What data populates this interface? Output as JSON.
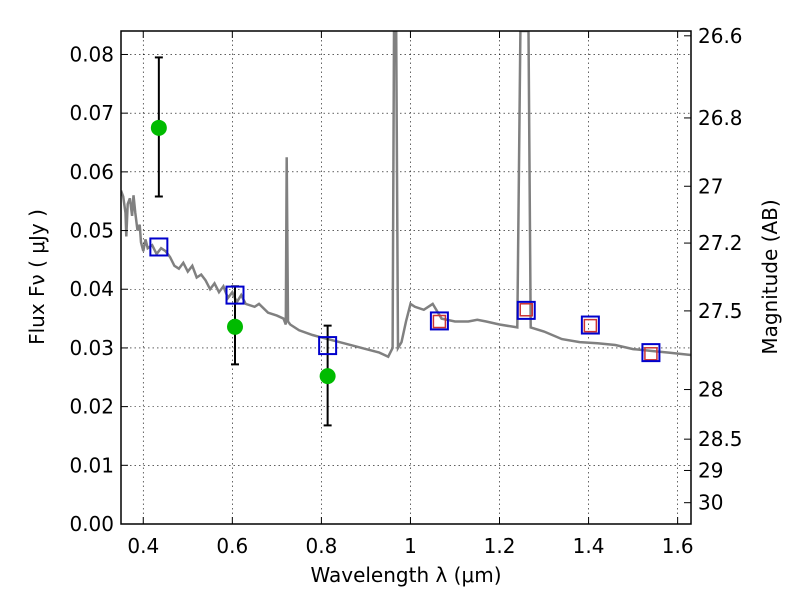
{
  "chart_data": {
    "type": "scatter",
    "xlabel": "Wavelength  λ (μm)",
    "ylabel": "Flux  Fν  ( μJy )",
    "ylabel_right": "Magnitude (AB)",
    "xlim": [
      0.35,
      1.63
    ],
    "ylim": [
      0.0,
      0.084
    ],
    "grid": true,
    "x_ticks": [
      {
        "value": 0.4,
        "label": "0.4"
      },
      {
        "value": 0.6,
        "label": "0.6"
      },
      {
        "value": 0.8,
        "label": "0.8"
      },
      {
        "value": 1.0,
        "label": "1"
      },
      {
        "value": 1.2,
        "label": "1.2"
      },
      {
        "value": 1.4,
        "label": "1.4"
      },
      {
        "value": 1.6,
        "label": "1.6"
      }
    ],
    "y_ticks": [
      {
        "value": 0.0,
        "label": "0.00"
      },
      {
        "value": 0.01,
        "label": "0.01"
      },
      {
        "value": 0.02,
        "label": "0.02"
      },
      {
        "value": 0.03,
        "label": "0.03"
      },
      {
        "value": 0.04,
        "label": "0.04"
      },
      {
        "value": 0.05,
        "label": "0.05"
      },
      {
        "value": 0.06,
        "label": "0.06"
      },
      {
        "value": 0.07,
        "label": "0.07"
      },
      {
        "value": 0.08,
        "label": "0.08"
      }
    ],
    "right_ticks": [
      {
        "value": 26.6,
        "label": "26.6"
      },
      {
        "value": 26.8,
        "label": "26.8"
      },
      {
        "value": 27.0,
        "label": "27"
      },
      {
        "value": 27.2,
        "label": "27.2"
      },
      {
        "value": 27.5,
        "label": "27.5"
      },
      {
        "value": 28.0,
        "label": "28"
      },
      {
        "value": 28.5,
        "label": "28.5"
      },
      {
        "value": 29.0,
        "label": "29"
      },
      {
        "value": 30.0,
        "label": "30"
      }
    ],
    "observed": [
      {
        "x": 0.435,
        "y": 0.0675,
        "yerr_low": 0.0558,
        "yerr_high": 0.0795
      },
      {
        "x": 0.606,
        "y": 0.0336,
        "yerr_low": 0.0272,
        "yerr_high": 0.0405
      },
      {
        "x": 0.814,
        "y": 0.0252,
        "yerr_low": 0.0168,
        "yerr_high": 0.0338
      }
    ],
    "model_points_blue": [
      {
        "x": 0.435,
        "y": 0.0472
      },
      {
        "x": 0.606,
        "y": 0.039
      },
      {
        "x": 0.814,
        "y": 0.0304
      },
      {
        "x": 1.065,
        "y": 0.0346
      },
      {
        "x": 1.26,
        "y": 0.0364
      },
      {
        "x": 1.404,
        "y": 0.0339
      },
      {
        "x": 1.54,
        "y": 0.0292
      }
    ],
    "model_points_red": [
      {
        "x": 1.065,
        "y": 0.0345
      },
      {
        "x": 1.26,
        "y": 0.0365
      },
      {
        "x": 1.404,
        "y": 0.0338
      },
      {
        "x": 1.54,
        "y": 0.029
      }
    ],
    "spectrum": [
      [
        0.35,
        0.0568
      ],
      [
        0.355,
        0.0558
      ],
      [
        0.36,
        0.053
      ],
      [
        0.362,
        0.049
      ],
      [
        0.365,
        0.0545
      ],
      [
        0.37,
        0.0555
      ],
      [
        0.375,
        0.0525
      ],
      [
        0.378,
        0.056
      ],
      [
        0.382,
        0.053
      ],
      [
        0.387,
        0.05
      ],
      [
        0.392,
        0.051
      ],
      [
        0.395,
        0.048
      ],
      [
        0.4,
        0.0465
      ],
      [
        0.405,
        0.0485
      ],
      [
        0.41,
        0.047
      ],
      [
        0.42,
        0.0475
      ],
      [
        0.43,
        0.046
      ],
      [
        0.44,
        0.047
      ],
      [
        0.45,
        0.0465
      ],
      [
        0.46,
        0.0455
      ],
      [
        0.47,
        0.044
      ],
      [
        0.48,
        0.0435
      ],
      [
        0.49,
        0.0445
      ],
      [
        0.5,
        0.043
      ],
      [
        0.51,
        0.044
      ],
      [
        0.52,
        0.042
      ],
      [
        0.53,
        0.0425
      ],
      [
        0.54,
        0.0415
      ],
      [
        0.55,
        0.04
      ],
      [
        0.56,
        0.041
      ],
      [
        0.57,
        0.0395
      ],
      [
        0.58,
        0.0405
      ],
      [
        0.59,
        0.0385
      ],
      [
        0.6,
        0.0395
      ],
      [
        0.61,
        0.0378
      ],
      [
        0.62,
        0.039
      ],
      [
        0.63,
        0.0375
      ],
      [
        0.65,
        0.037
      ],
      [
        0.66,
        0.0375
      ],
      [
        0.68,
        0.036
      ],
      [
        0.7,
        0.0355
      ],
      [
        0.715,
        0.035
      ],
      [
        0.72,
        0.034
      ],
      [
        0.722,
        0.0625
      ],
      [
        0.725,
        0.0345
      ],
      [
        0.73,
        0.034
      ],
      [
        0.75,
        0.033
      ],
      [
        0.78,
        0.0322
      ],
      [
        0.8,
        0.0318
      ],
      [
        0.85,
        0.0308
      ],
      [
        0.9,
        0.0298
      ],
      [
        0.93,
        0.0292
      ],
      [
        0.95,
        0.0285
      ],
      [
        0.96,
        0.03
      ],
      [
        0.963,
        0.084
      ],
      [
        0.968,
        0.084
      ],
      [
        0.972,
        0.03
      ],
      [
        0.98,
        0.031
      ],
      [
        0.99,
        0.0345
      ],
      [
        1.0,
        0.0375
      ],
      [
        1.01,
        0.037
      ],
      [
        1.03,
        0.0365
      ],
      [
        1.05,
        0.0375
      ],
      [
        1.07,
        0.035
      ],
      [
        1.1,
        0.0345
      ],
      [
        1.13,
        0.0345
      ],
      [
        1.15,
        0.0348
      ],
      [
        1.17,
        0.0345
      ],
      [
        1.2,
        0.034
      ],
      [
        1.24,
        0.0335
      ],
      [
        1.247,
        0.084
      ],
      [
        1.265,
        0.084
      ],
      [
        1.27,
        0.0335
      ],
      [
        1.3,
        0.0328
      ],
      [
        1.34,
        0.0315
      ],
      [
        1.38,
        0.031
      ],
      [
        1.42,
        0.0308
      ],
      [
        1.46,
        0.0305
      ],
      [
        1.5,
        0.0298
      ],
      [
        1.54,
        0.0295
      ],
      [
        1.58,
        0.0292
      ],
      [
        1.63,
        0.0288
      ]
    ],
    "colors": {
      "spectrum": "#808080",
      "observed": "#00bb00",
      "errorbar": "#000000",
      "model_blue": "#0000cc",
      "model_red": "#cc3333"
    }
  }
}
